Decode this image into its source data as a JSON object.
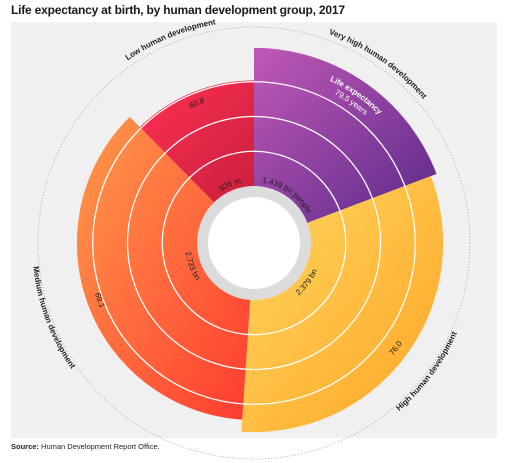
{
  "title": "Life expectancy at birth, by human development group, 2017",
  "source_label": "Source:",
  "source_text": "Human Development Report Office.",
  "chart_data": {
    "type": "polar-area",
    "title": "Life expectancy at birth, by human development group, 2017",
    "radial_axis": "Life expectancy",
    "angular_size": "people",
    "scale_max": 80,
    "groups": [
      {
        "name": "Very high human development",
        "life_expectancy": 79.5,
        "life_expectancy_label": "79.5 years",
        "population": 1.439,
        "population_label": "1.439 bn people",
        "colors": [
          "#c158b6",
          "#5a2a8a"
        ]
      },
      {
        "name": "High human development",
        "life_expectancy": 76.0,
        "life_expectancy_label": "76.0",
        "population": 2.379,
        "population_label": "2.379 bn",
        "colors": [
          "#ffd861",
          "#ffa424"
        ]
      },
      {
        "name": "Medium human development",
        "life_expectancy": 69.1,
        "life_expectancy_label": "69.1",
        "population": 2.733,
        "population_label": "2.733 bn",
        "colors": [
          "#ff9a4a",
          "#ff3b30"
        ]
      },
      {
        "name": "Low human development",
        "life_expectancy": 60.8,
        "life_expectancy_label": "60.8",
        "population": 0.926,
        "population_label": "926 m",
        "colors": [
          "#ff2f55",
          "#c9203c"
        ]
      }
    ],
    "callout": "Life expectancy"
  }
}
